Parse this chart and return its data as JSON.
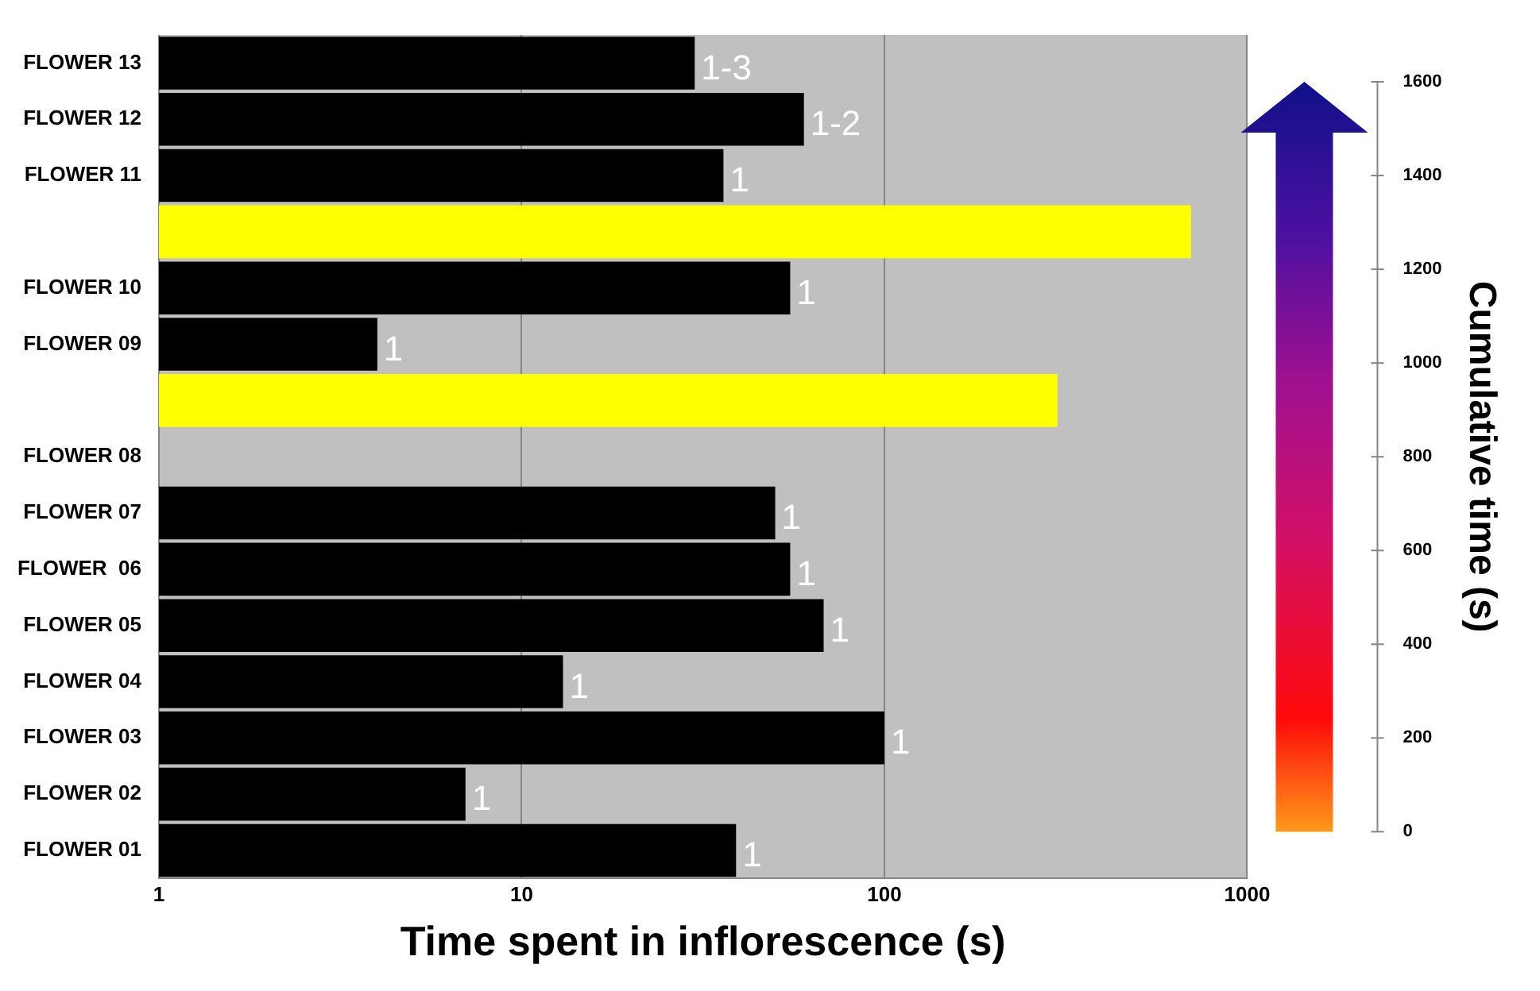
{
  "chart_data": {
    "type": "bar",
    "orientation": "horizontal",
    "categories": [
      "FLOWER 13",
      "FLOWER 12",
      "FLOWER 11",
      null,
      "FLOWER 10",
      "FLOWER 09",
      null,
      "FLOWER 08",
      "FLOWER 07",
      "FLOWER  06",
      "FLOWER 05",
      "FLOWER 04",
      "FLOWER 03",
      "FLOWER 02",
      "FLOWER 01"
    ],
    "values": [
      30,
      60,
      36,
      700,
      55,
      4,
      300,
      null,
      50,
      55,
      68,
      13,
      100,
      7,
      39
    ],
    "colors": [
      "#000000",
      "#000000",
      "#000000",
      "#ffff00",
      "#000000",
      "#000000",
      "#ffff00",
      "#000000",
      "#000000",
      "#000000",
      "#000000",
      "#000000",
      "#000000",
      "#000000",
      "#000000"
    ],
    "annotations": [
      {
        "text": "1-3",
        "x": 30,
        "y": "FLOWER 13"
      },
      {
        "text": "1-2",
        "x": 60,
        "y": "FLOWER 12"
      },
      {
        "text": "1",
        "x": 36,
        "y": "FLOWER 11"
      },
      {
        "text": "1",
        "x": 55,
        "y": "FLOWER 10"
      },
      {
        "text": "1",
        "x": 4,
        "y": "FLOWER 09"
      },
      {
        "text": "1",
        "x": 50,
        "y": "FLOWER 07"
      },
      {
        "text": "1",
        "x": 55,
        "y": "FLOWER  06"
      },
      {
        "text": "1",
        "x": 68,
        "y": "FLOWER 05"
      },
      {
        "text": "1",
        "x": 13,
        "y": "FLOWER 04"
      },
      {
        "text": "1",
        "x": 100,
        "y": "FLOWER 03"
      },
      {
        "text": "1",
        "x": 7,
        "y": "FLOWER 02"
      },
      {
        "text": "1",
        "x": 39,
        "y": "FLOWER 01"
      }
    ],
    "log": "x",
    "xlim": [
      1,
      1000
    ],
    "xticks": [
      1,
      10,
      100,
      1000
    ],
    "grid": "x",
    "legend": false,
    "xlabel": "Time spent in inflorescence (s)",
    "clabel": "Cumulative time (s)",
    "clim": [
      0,
      1600
    ],
    "cticks": [
      0,
      200,
      400,
      600,
      800,
      1000,
      1200,
      1400,
      1600
    ]
  }
}
